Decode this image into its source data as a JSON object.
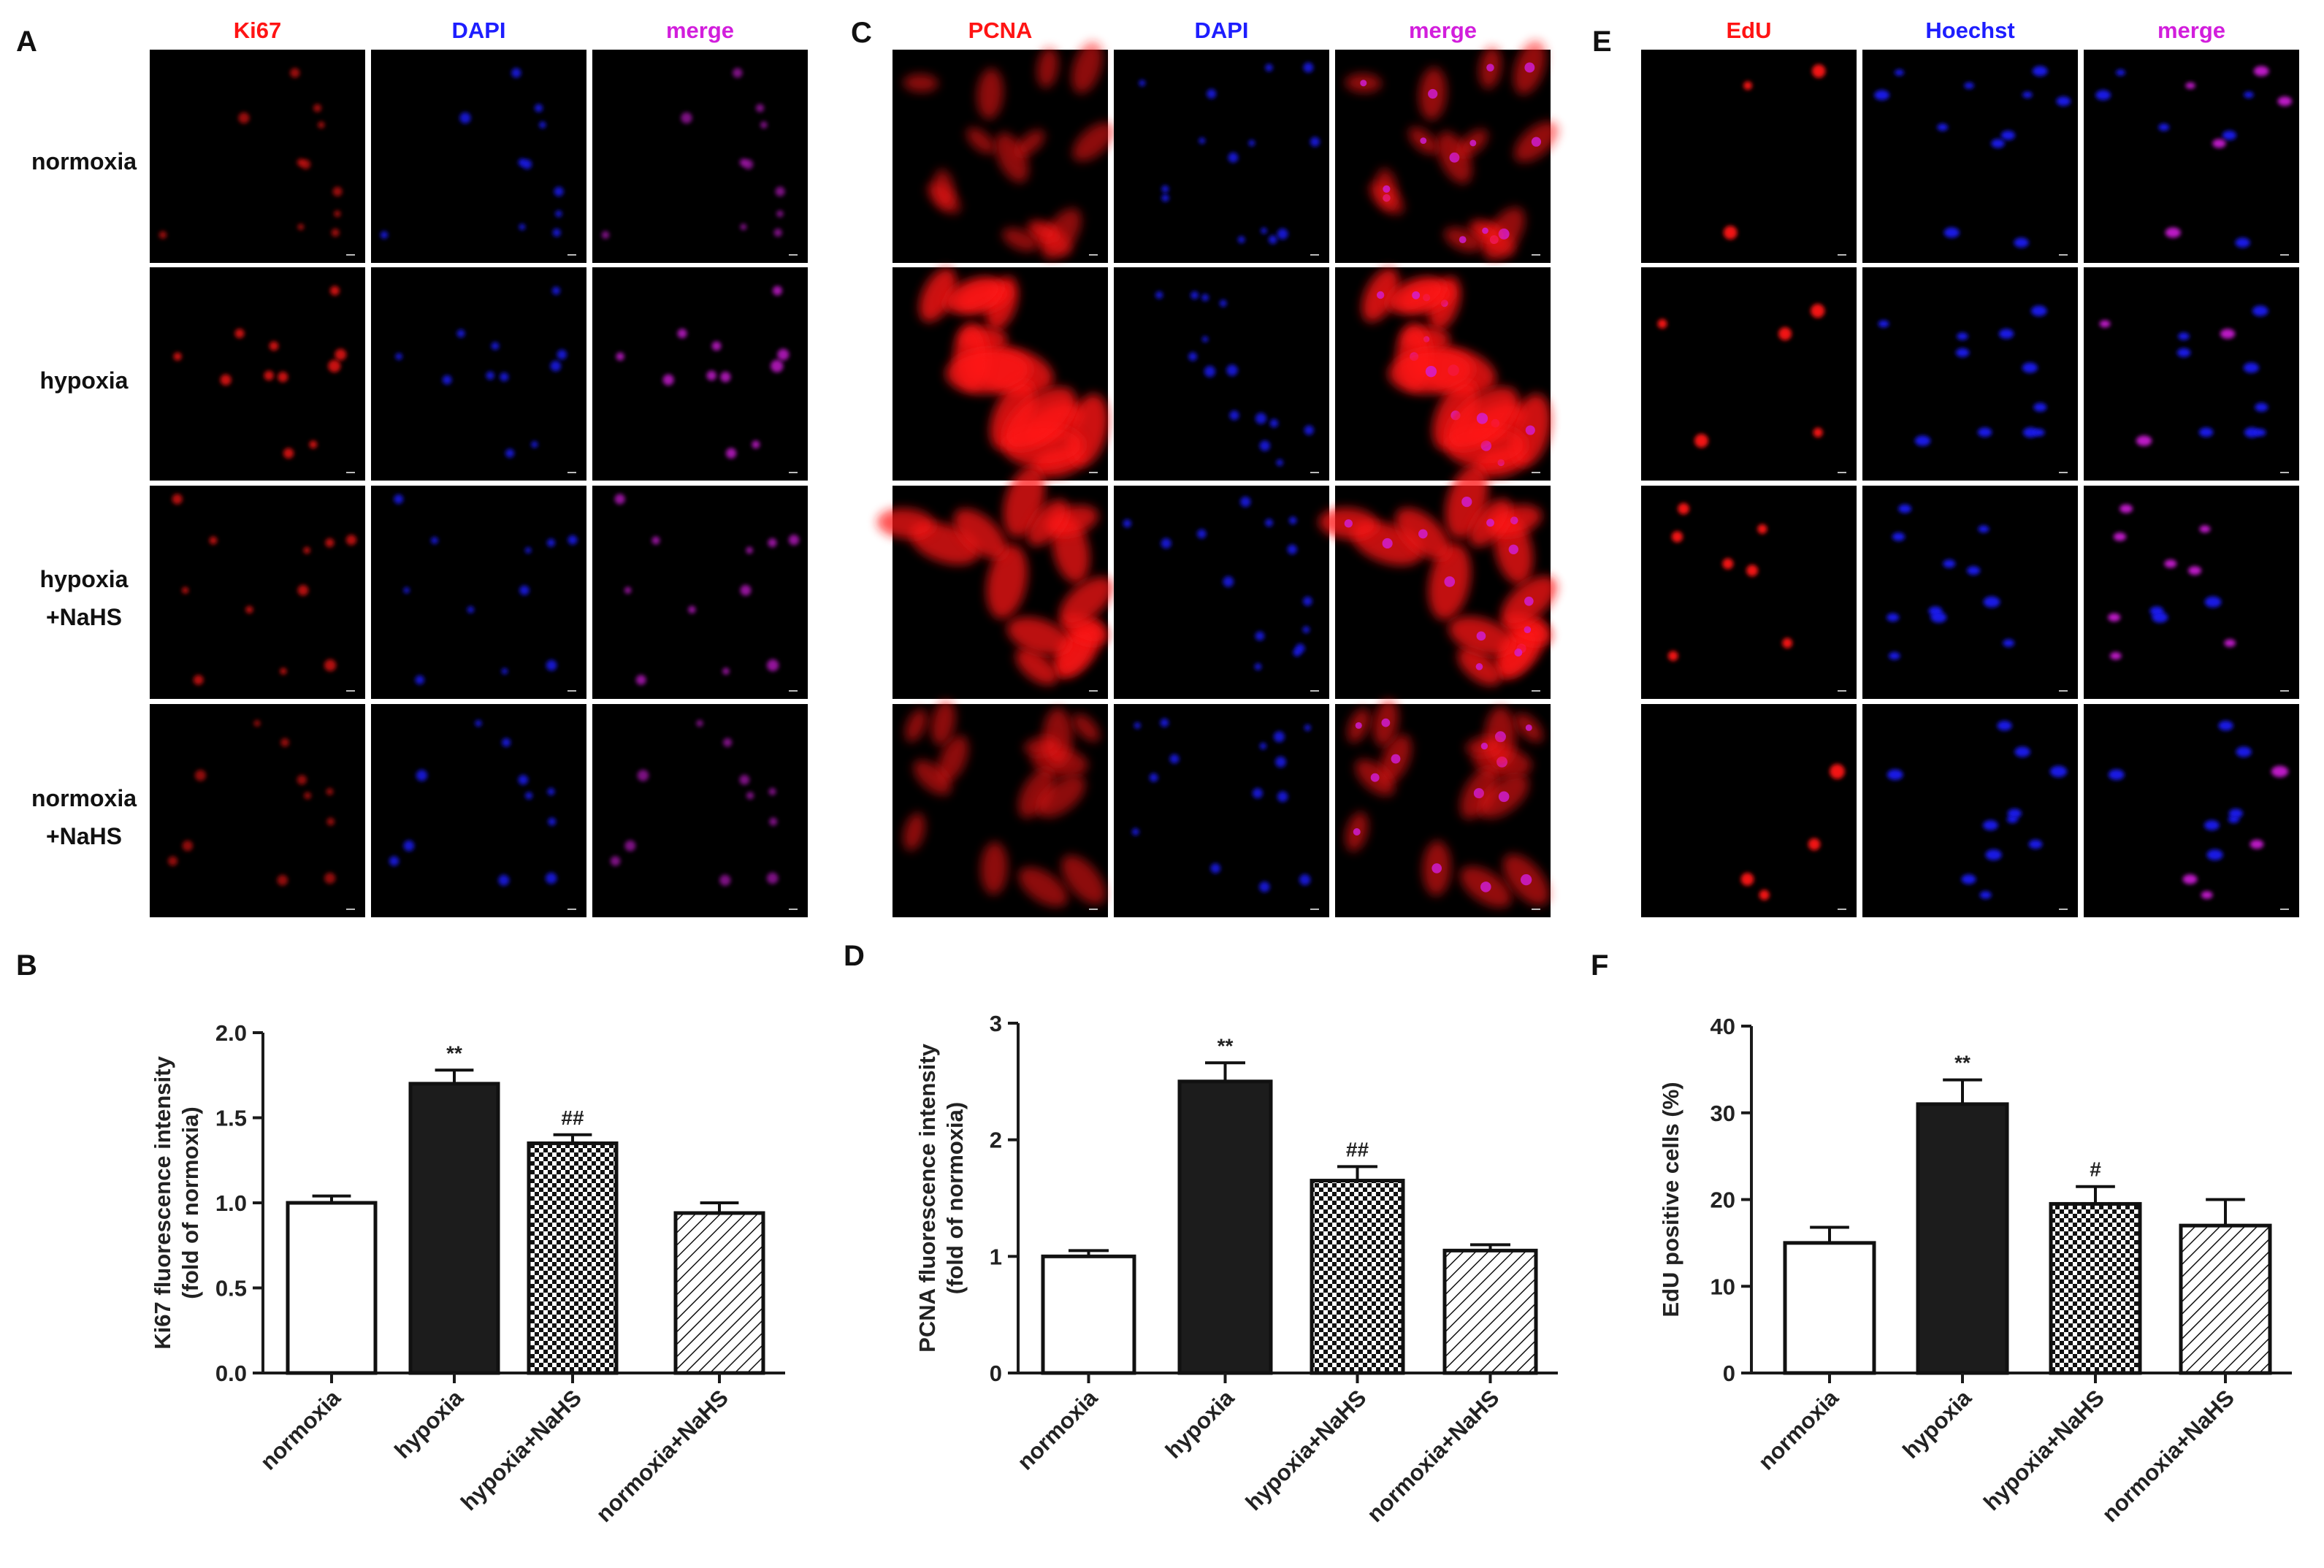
{
  "panel_letters": [
    "A",
    "B",
    "C",
    "D",
    "E",
    "F"
  ],
  "row_labels": [
    "normoxia",
    "hypoxia",
    "hypoxia\n+NaHS",
    "normoxia\n+NaHS"
  ],
  "colors": {
    "red": "#ff1414",
    "blue": "#1e1eff",
    "magenta": "#d21edc",
    "bar_dark": "#1c1c1c",
    "axis": "#1a1a1a"
  },
  "micro_panels": [
    {
      "letter": "A",
      "headers": [
        "Ki67",
        "DAPI",
        "merge"
      ],
      "intensity": [
        [
          0.35,
          0.35,
          0.35
        ],
        [
          0.7,
          0.7,
          0.7
        ],
        [
          0.55,
          0.5,
          0.55
        ],
        [
          0.3,
          0.45,
          0.35
        ]
      ],
      "style": [
        "nuclear",
        "nuclear",
        "nuclear",
        "nuclear"
      ]
    },
    {
      "letter": "C",
      "headers": [
        "PCNA",
        "DAPI",
        "merge"
      ],
      "intensity": [
        [
          0.45,
          0.5,
          0.5
        ],
        [
          1.0,
          0.8,
          1.0
        ],
        [
          0.85,
          0.8,
          0.9
        ],
        [
          0.45,
          0.6,
          0.5
        ]
      ],
      "style": [
        "cyto",
        "cyto",
        "cyto",
        "cyto"
      ]
    },
    {
      "letter": "E",
      "headers": [
        "EdU",
        "Hoechst",
        "merge"
      ],
      "intensity": [
        [
          0.35,
          0.85,
          0.8
        ],
        [
          0.7,
          0.9,
          0.85
        ],
        [
          0.4,
          0.85,
          0.8
        ],
        [
          0.3,
          0.95,
          0.85
        ]
      ],
      "style": [
        "edu",
        "edu",
        "edu",
        "edu"
      ]
    }
  ],
  "chart_data": [
    {
      "panel": "B",
      "type": "bar",
      "categories": [
        "normoxia",
        "hypoxia",
        "hypoxia+NaHS",
        "normoxia+NaHS"
      ],
      "values": [
        1.0,
        1.7,
        1.35,
        0.94
      ],
      "errors": [
        0.04,
        0.08,
        0.05,
        0.06
      ],
      "annotations": [
        "",
        "**",
        "##",
        ""
      ],
      "patterns": [
        "white",
        "black",
        "checker",
        "hatch"
      ],
      "ylabel": [
        "Ki67 fluorescence intensity",
        "(fold of normoxia)"
      ],
      "ylim": [
        0,
        2.0
      ],
      "yticks": [
        "0.0",
        "0.5",
        "1.0",
        "1.5",
        "2.0"
      ],
      "ytick_values": [
        0,
        0.5,
        1.0,
        1.5,
        2.0
      ]
    },
    {
      "panel": "D",
      "type": "bar",
      "categories": [
        "normoxia",
        "hypoxia",
        "hypoxia+NaHS",
        "normoxia+NaHS"
      ],
      "values": [
        1.0,
        2.5,
        1.65,
        1.05
      ],
      "errors": [
        0.05,
        0.16,
        0.12,
        0.05
      ],
      "annotations": [
        "",
        "**",
        "##",
        ""
      ],
      "patterns": [
        "white",
        "black",
        "checker",
        "hatch"
      ],
      "ylabel": [
        "PCNA fluorescence intensity",
        "(fold of normoxia)"
      ],
      "ylim": [
        0,
        3
      ],
      "yticks": [
        "0",
        "1",
        "2",
        "3"
      ],
      "ytick_values": [
        0,
        1,
        2,
        3
      ]
    },
    {
      "panel": "F",
      "type": "bar",
      "categories": [
        "normoxia",
        "hypoxia",
        "hypoxia+NaHS",
        "normoxia+NaHS"
      ],
      "values": [
        15,
        31,
        19.5,
        17
      ],
      "errors": [
        1.8,
        2.8,
        2.0,
        3.0
      ],
      "annotations": [
        "",
        "**",
        "#",
        ""
      ],
      "patterns": [
        "white",
        "black",
        "checker",
        "hatch"
      ],
      "ylabel": [
        "EdU positive cells (%)"
      ],
      "ylim": [
        0,
        40
      ],
      "yticks": [
        "0",
        "10",
        "20",
        "30",
        "40"
      ],
      "ytick_values": [
        0,
        10,
        20,
        30,
        40
      ]
    }
  ]
}
